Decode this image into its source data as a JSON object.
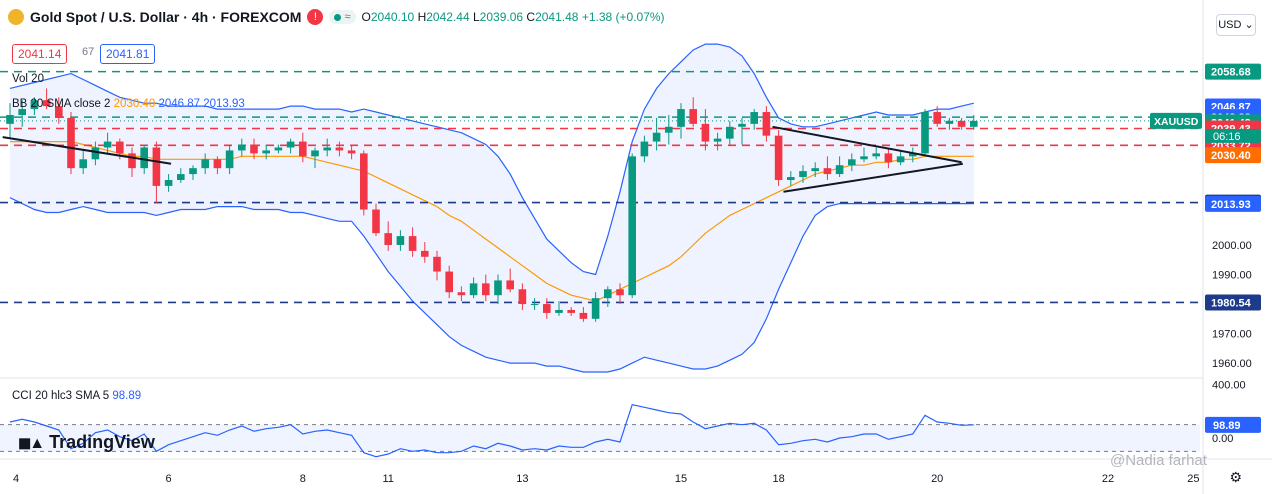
{
  "header": {
    "title": "Gold Spot / U.S. Dollar · 4h · FOREXCOM",
    "badge_excl": "!",
    "pill_wave": "≈",
    "open_k": "O",
    "open_v": "2040.10",
    "high_k": "H",
    "high_v": "2042.44",
    "low_k": "L",
    "low_v": "2039.06",
    "close_k": "C",
    "close_v": "2041.48",
    "change": "+1.38 (+0.07%)"
  },
  "bid": "2041.14",
  "spread": "67",
  "ask": "2041.81",
  "currency": "USD",
  "currency_arrow": "⌄",
  "vol_label": "Vol 20",
  "bb_legend": {
    "name": "BB 20 SMA close 2",
    "basis": "2030.40",
    "upper": "2046.87",
    "lower": "2013.93"
  },
  "cci_legend": {
    "name": "CCI 20 hlc3 SMA 5",
    "value": "98.89"
  },
  "brand": "TradingView",
  "watermark": "@Nadia farhat",
  "colors": {
    "bull": "#089981",
    "bear": "#f23645",
    "band": "#2962ff",
    "basis": "#ff9800",
    "support": "#1e3a8a",
    "resist_green": "#089981",
    "resist_red": "#f23645"
  },
  "chart_data": {
    "type": "candlestick",
    "symbol": "XAUUSD",
    "interval": "4h",
    "price_axis": {
      "ylim": [
        1957,
        2066
      ],
      "ticks": [
        1960,
        1970,
        1980.54,
        1990,
        2000,
        2013.93,
        2014.35,
        2030.4,
        2033.72,
        2039.43,
        2041.48,
        2043.28,
        2046.87,
        2058.68
      ],
      "labels": [
        "1960.00",
        "1970.00",
        "1980.54",
        "1990.00",
        "2000.00",
        "2013.93",
        "2014.35",
        "2030.40",
        "2033.72",
        "2039.43",
        "2041.48",
        "2043.28",
        "2046.87",
        "2058.68"
      ]
    },
    "x_ticks": [
      {
        "i": 0.5,
        "label": "4"
      },
      {
        "i": 13,
        "label": "6"
      },
      {
        "i": 24,
        "label": "8"
      },
      {
        "i": 31,
        "label": "11"
      },
      {
        "i": 42,
        "label": "13"
      },
      {
        "i": 55,
        "label": "15"
      },
      {
        "i": 63,
        "label": "18"
      },
      {
        "i": 76,
        "label": "20"
      },
      {
        "i": 90,
        "label": "22"
      },
      {
        "i": 97,
        "label": "25"
      }
    ],
    "price_tags": [
      {
        "value": 2058.68,
        "label": "2058.68",
        "bg": "#089981"
      },
      {
        "value": 2046.87,
        "label": "2046.87",
        "bg": "#2962ff"
      },
      {
        "value": 2043.28,
        "label": "2043.28",
        "bg": "#2962ff"
      },
      {
        "value": 2041.48,
        "label": "2041.48",
        "bg": "#089981"
      },
      {
        "value": 2039.43,
        "label": "2039.43",
        "bg": "#f23645"
      },
      {
        "value": 2033.72,
        "label": "2033.72",
        "bg": "#f23645"
      },
      {
        "value": 2030.4,
        "label": "2030.40",
        "bg": "#ff6d00"
      },
      {
        "value": 2014.35,
        "label": "2014.35",
        "bg": "#1e3a8a"
      },
      {
        "value": 2013.93,
        "label": "2013.93",
        "bg": "#2962ff"
      },
      {
        "value": 1980.54,
        "label": "1980.54",
        "bg": "#1e3a8a"
      }
    ],
    "countdown": "06:16",
    "hlines": [
      {
        "value": 2058.68,
        "color": "#089981"
      },
      {
        "value": 2043.28,
        "color": "#089981"
      },
      {
        "value": 2039.43,
        "color": "#f23645"
      },
      {
        "value": 2033.72,
        "color": "#f23645"
      },
      {
        "value": 2014.35,
        "color": "#1e3a8a"
      },
      {
        "value": 1980.54,
        "color": "#1e3a8a"
      }
    ],
    "candles": [
      [
        2041,
        2048,
        2036,
        2044
      ],
      [
        2044,
        2049,
        2040,
        2046
      ],
      [
        2046,
        2050,
        2044,
        2049
      ],
      [
        2049,
        2053,
        2046,
        2047
      ],
      [
        2047,
        2050,
        2041,
        2043
      ],
      [
        2043,
        2045,
        2024,
        2026
      ],
      [
        2026,
        2032,
        2024,
        2029
      ],
      [
        2029,
        2035,
        2027,
        2033
      ],
      [
        2033,
        2038,
        2031,
        2035
      ],
      [
        2035,
        2036,
        2029,
        2031
      ],
      [
        2031,
        2033,
        2023,
        2026
      ],
      [
        2026,
        2034,
        2024,
        2033
      ],
      [
        2033,
        2035,
        2014,
        2020
      ],
      [
        2020,
        2024,
        2018,
        2022
      ],
      [
        2022,
        2026,
        2021,
        2024
      ],
      [
        2024,
        2027,
        2022,
        2026
      ],
      [
        2026,
        2031,
        2024,
        2029
      ],
      [
        2029,
        2030,
        2024,
        2026
      ],
      [
        2026,
        2034,
        2024,
        2032
      ],
      [
        2032,
        2036,
        2030,
        2034
      ],
      [
        2034,
        2036,
        2029,
        2031
      ],
      [
        2031,
        2034,
        2029,
        2032
      ],
      [
        2032,
        2034,
        2031,
        2033
      ],
      [
        2033,
        2036,
        2031,
        2035
      ],
      [
        2035,
        2038,
        2028,
        2030
      ],
      [
        2030,
        2033,
        2026,
        2032
      ],
      [
        2032,
        2036,
        2030,
        2033
      ],
      [
        2033,
        2035,
        2030,
        2032
      ],
      [
        2032,
        2034,
        2029,
        2031
      ],
      [
        2031,
        2032,
        2010,
        2012
      ],
      [
        2012,
        2014,
        2003,
        2004
      ],
      [
        2004,
        2008,
        1998,
        2000
      ],
      [
        2000,
        2005,
        1998,
        2003
      ],
      [
        2003,
        2006,
        1996,
        1998
      ],
      [
        1998,
        2001,
        1994,
        1996
      ],
      [
        1996,
        1998,
        1988,
        1991
      ],
      [
        1991,
        1993,
        1982,
        1984
      ],
      [
        1984,
        1986,
        1981,
        1983
      ],
      [
        1983,
        1989,
        1982,
        1987
      ],
      [
        1987,
        1990,
        1981,
        1983
      ],
      [
        1983,
        1990,
        1980,
        1988
      ],
      [
        1988,
        1992,
        1984,
        1985
      ],
      [
        1985,
        1987,
        1978,
        1980
      ],
      [
        1980,
        1982,
        1978,
        1980
      ],
      [
        1980,
        1982,
        1975,
        1977
      ],
      [
        1977,
        1981,
        1976,
        1978
      ],
      [
        1978,
        1979,
        1976,
        1977
      ],
      [
        1977,
        1979,
        1974,
        1975
      ],
      [
        1975,
        1984,
        1974,
        1982
      ],
      [
        1982,
        1986,
        1979,
        1985
      ],
      [
        1985,
        1987,
        1980,
        1983
      ],
      [
        1983,
        2031,
        1982,
        2030
      ],
      [
        2030,
        2037,
        2028,
        2035
      ],
      [
        2035,
        2043,
        2032,
        2038
      ],
      [
        2038,
        2044,
        2034,
        2040
      ],
      [
        2040,
        2048,
        2036,
        2046
      ],
      [
        2046,
        2050,
        2040,
        2041
      ],
      [
        2041,
        2046,
        2032,
        2035
      ],
      [
        2035,
        2038,
        2032,
        2036
      ],
      [
        2036,
        2042,
        2034,
        2040
      ],
      [
        2040,
        2043,
        2034,
        2041
      ],
      [
        2041,
        2046,
        2039,
        2045
      ],
      [
        2045,
        2047,
        2035,
        2037
      ],
      [
        2037,
        2039,
        2020,
        2022
      ],
      [
        2022,
        2025,
        2020,
        2023
      ],
      [
        2023,
        2027,
        2021,
        2025
      ],
      [
        2025,
        2028,
        2023,
        2026
      ],
      [
        2026,
        2030,
        2022,
        2024
      ],
      [
        2024,
        2030,
        2023,
        2027
      ],
      [
        2027,
        2031,
        2025,
        2029
      ],
      [
        2029,
        2033,
        2028,
        2030
      ],
      [
        2030,
        2033,
        2029,
        2031
      ],
      [
        2031,
        2033,
        2026,
        2028
      ],
      [
        2028,
        2032,
        2027,
        2030
      ],
      [
        2030,
        2033,
        2028,
        2031
      ],
      [
        2031,
        2046,
        2030,
        2045
      ],
      [
        2045,
        2047,
        2040,
        2041
      ],
      [
        2041,
        2043,
        2039,
        2042
      ],
      [
        2042,
        2043,
        2039,
        2040
      ],
      [
        2040,
        2044,
        2039,
        2042
      ]
    ],
    "bb_upper": [
      2053,
      2054,
      2055,
      2056,
      2057,
      2058,
      2056,
      2054,
      2052,
      2050,
      2049,
      2048,
      2048,
      2047,
      2047,
      2047,
      2047,
      2046,
      2046,
      2046,
      2046,
      2046,
      2046,
      2047,
      2047,
      2046,
      2046,
      2046,
      2045,
      2046,
      2045,
      2044,
      2043,
      2042,
      2041,
      2040,
      2039,
      2038,
      2036,
      2034,
      2030,
      2024,
      2016,
      2009,
      2002,
      1998,
      1994,
      1991,
      1990,
      2003,
      2018,
      2035,
      2046,
      2053,
      2058,
      2062,
      2066,
      2068,
      2068,
      2067,
      2064,
      2058,
      2050,
      2043,
      2041,
      2040,
      2040,
      2041,
      2042,
      2043,
      2044,
      2045,
      2044,
      2044,
      2044,
      2045,
      2046,
      2046,
      2047,
      2048
    ],
    "bb_lower": [
      2016,
      2014,
      2012,
      2011,
      2011,
      2012,
      2013,
      2012,
      2011,
      2011,
      2011,
      2011,
      2010,
      2011,
      2012,
      2012,
      2012,
      2013,
      2013,
      2013,
      2012,
      2012,
      2012,
      2011,
      2011,
      2010,
      2009,
      2008,
      2008,
      2003,
      1997,
      1991,
      1986,
      1981,
      1977,
      1973,
      1969,
      1966,
      1964,
      1962,
      1961,
      1960,
      1960,
      1960,
      1959,
      1959,
      1958,
      1957,
      1957,
      1957,
      1958,
      1960,
      1962,
      1961,
      1960,
      1959,
      1958,
      1958,
      1959,
      1961,
      1963,
      1967,
      1975,
      1985,
      1994,
      2003,
      2010,
      2013,
      2014,
      2014,
      2014,
      2014,
      2014,
      2014,
      2014,
      2014,
      2014,
      2014,
      2014,
      2014
    ],
    "bb_basis": [
      2035,
      2035,
      2035,
      2035,
      2035,
      2035,
      2034,
      2033,
      2032,
      2031,
      2030,
      2030,
      2029,
      2029,
      2029,
      2029,
      2029,
      2029,
      2029,
      2030,
      2030,
      2030,
      2030,
      2030,
      2030,
      2029,
      2028,
      2027,
      2026,
      2025,
      2023,
      2021,
      2019,
      2017,
      2015,
      2013,
      2010,
      2008,
      2005,
      2002,
      1999,
      1996,
      1993,
      1990,
      1987,
      1985,
      1983,
      1982,
      1981,
      1983,
      1985,
      1987,
      1989,
      1991,
      1993,
      1996,
      2000,
      2004,
      2007,
      2010,
      2012,
      2014,
      2016,
      2018,
      2020,
      2022,
      2024,
      2025,
      2026,
      2027,
      2027,
      2028,
      2028,
      2029,
      2029,
      2030,
      2030,
      2030,
      2030,
      2030
    ],
    "cci": {
      "ylim": [
        -150,
        420
      ],
      "ticks": [
        400,
        0
      ],
      "labels": [
        "400.00",
        "0.00"
      ],
      "current": "98.89",
      "upper_level": 100,
      "lower_level": -100,
      "values": [
        120,
        140,
        120,
        90,
        60,
        -80,
        -40,
        40,
        60,
        10,
        -20,
        30,
        -100,
        -50,
        -20,
        10,
        40,
        20,
        60,
        90,
        50,
        70,
        80,
        100,
        30,
        50,
        60,
        40,
        20,
        -110,
        -140,
        -120,
        -80,
        -100,
        -90,
        -110,
        -110,
        -100,
        -60,
        -80,
        -40,
        -60,
        -90,
        -80,
        -90,
        -60,
        -70,
        -70,
        -30,
        -10,
        -30,
        250,
        230,
        210,
        190,
        180,
        120,
        70,
        90,
        110,
        100,
        110,
        60,
        -50,
        -40,
        -20,
        -10,
        -30,
        0,
        10,
        30,
        30,
        -10,
        10,
        30,
        170,
        120,
        110,
        95,
        99
      ]
    },
    "trendlines": [
      {
        "from": [
          -0.6,
          2036.5
        ],
        "to": [
          13.2,
          2027.5
        ]
      },
      {
        "from": [
          62.5,
          2040
        ],
        "to": [
          78.0,
          2028
        ]
      },
      {
        "from": [
          63.4,
          2018
        ],
        "to": [
          78.1,
          2027.5
        ]
      }
    ]
  }
}
